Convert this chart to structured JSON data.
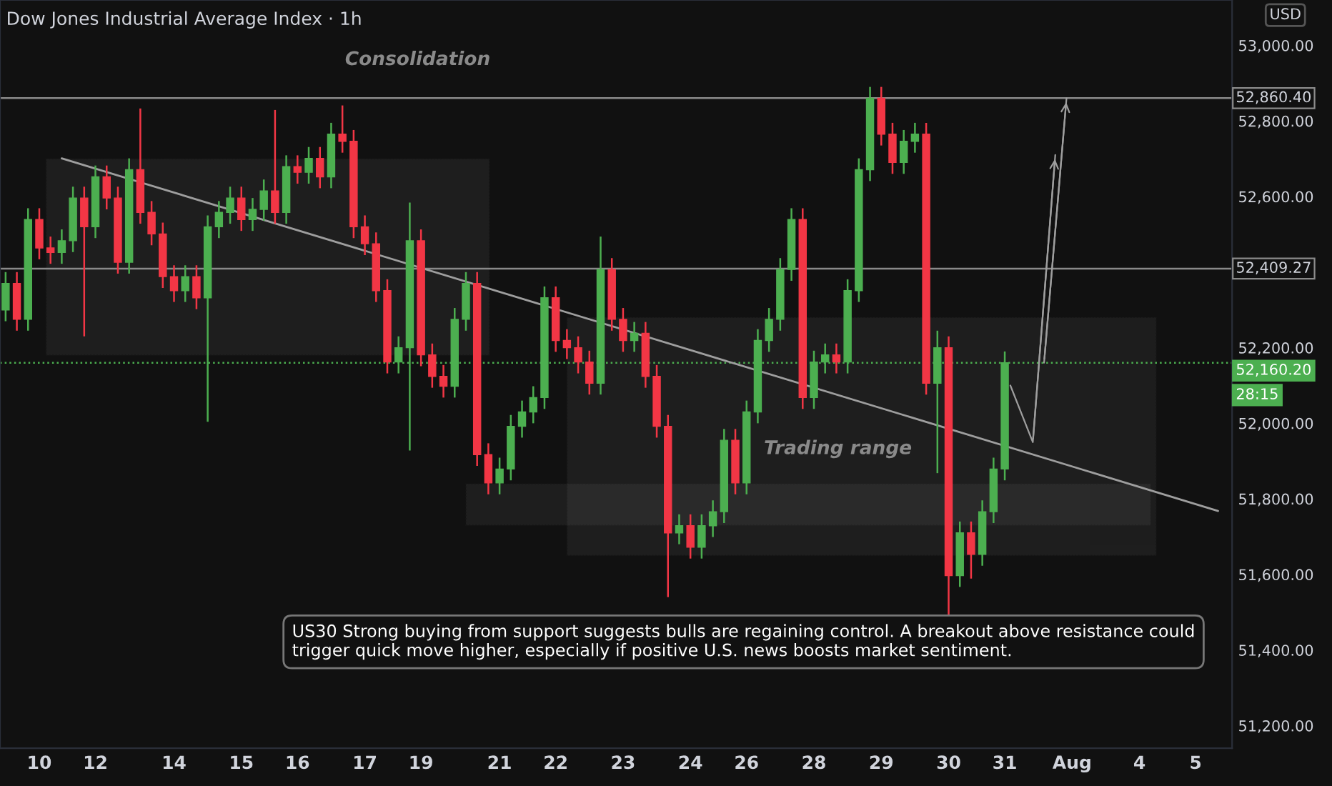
{
  "chart_data": {
    "type": "candlestick",
    "title": "Dow Jones Industrial Average Index · 1h",
    "categories": [
      null,
      null,
      null,
      "10",
      null,
      null,
      null,
      null,
      "12",
      null,
      null,
      null,
      null,
      null,
      null,
      "14",
      null,
      null,
      null,
      null,
      null,
      "15",
      null,
      null,
      null,
      null,
      "16",
      null,
      null,
      null,
      null,
      null,
      "17",
      null,
      null,
      null,
      null,
      "19",
      null,
      null,
      null,
      null,
      null,
      null,
      "21",
      null,
      null,
      null,
      null,
      "22",
      null,
      null,
      null,
      null,
      null,
      "23",
      null,
      null,
      null,
      null,
      null,
      "24",
      null,
      null,
      null,
      null,
      "26",
      null,
      null,
      null,
      null,
      null,
      "28",
      null,
      null,
      null,
      null,
      null,
      "29",
      null,
      null,
      null,
      null,
      null,
      "30",
      null,
      null,
      null,
      null,
      "31",
      null,
      null,
      null,
      null,
      null,
      "Aug",
      null,
      null,
      null,
      null,
      null,
      "4",
      null,
      null,
      null,
      null,
      "5",
      null,
      null,
      null
    ],
    "ohlc": [
      [
        52300,
        52400,
        52270,
        52370
      ],
      [
        52370,
        52400,
        52245,
        52275
      ],
      [
        52275,
        52569,
        52245,
        52539
      ],
      [
        52539,
        52569,
        52434,
        52464
      ],
      [
        52464,
        52494,
        52422,
        52452
      ],
      [
        52452,
        52513,
        52422,
        52483
      ],
      [
        52483,
        52626,
        52453,
        52596
      ],
      [
        52596,
        52626,
        52230,
        52520
      ],
      [
        52520,
        52682,
        52490,
        52652
      ],
      [
        52652,
        52682,
        52566,
        52596
      ],
      [
        52596,
        52626,
        52396,
        52426
      ],
      [
        52426,
        52701,
        52396,
        52671
      ],
      [
        52671,
        52833,
        52528,
        52558
      ],
      [
        52558,
        52588,
        52471,
        52501
      ],
      [
        52501,
        52531,
        52358,
        52388
      ],
      [
        52388,
        52418,
        52321,
        52351
      ],
      [
        52351,
        52418,
        52321,
        52388
      ],
      [
        52388,
        52418,
        52302,
        52332
      ],
      [
        52332,
        52550,
        52004,
        52520
      ],
      [
        52520,
        52588,
        52490,
        52558
      ],
      [
        52558,
        52626,
        52528,
        52596
      ],
      [
        52596,
        52626,
        52509,
        52539
      ],
      [
        52539,
        52596,
        52509,
        52566
      ],
      [
        52566,
        52645,
        52536,
        52615
      ],
      [
        52615,
        52829,
        52528,
        52558
      ],
      [
        52558,
        52709,
        52528,
        52679
      ],
      [
        52679,
        52709,
        52634,
        52664
      ],
      [
        52664,
        52731,
        52634,
        52701
      ],
      [
        52701,
        52731,
        52622,
        52652
      ],
      [
        52652,
        52795,
        52622,
        52765
      ],
      [
        52765,
        52841,
        52716,
        52746
      ],
      [
        52746,
        52776,
        52490,
        52520
      ],
      [
        52520,
        52550,
        52445,
        52475
      ],
      [
        52475,
        52505,
        52321,
        52351
      ],
      [
        52351,
        52381,
        52132,
        52162
      ],
      [
        52162,
        52230,
        52132,
        52200
      ],
      [
        52200,
        52584,
        51928,
        52483
      ],
      [
        52483,
        52513,
        52151,
        52181
      ],
      [
        52181,
        52211,
        52094,
        52124
      ],
      [
        52124,
        52154,
        52068,
        52098
      ],
      [
        52098,
        52305,
        52068,
        52275
      ],
      [
        52275,
        52400,
        52245,
        52370
      ],
      [
        52370,
        52400,
        51887,
        51917
      ],
      [
        51917,
        51947,
        51812,
        51842
      ],
      [
        51842,
        51909,
        51812,
        51879
      ],
      [
        51879,
        52022,
        51849,
        51992
      ],
      [
        51992,
        52060,
        51962,
        52030
      ],
      [
        52030,
        52098,
        52000,
        52068
      ],
      [
        52068,
        52362,
        52038,
        52332
      ],
      [
        52332,
        52362,
        52189,
        52219
      ],
      [
        52219,
        52249,
        52170,
        52200
      ],
      [
        52200,
        52230,
        52132,
        52162
      ],
      [
        52162,
        52192,
        52076,
        52106
      ],
      [
        52106,
        52494,
        52076,
        52407
      ],
      [
        52407,
        52437,
        52245,
        52275
      ],
      [
        52275,
        52305,
        52189,
        52219
      ],
      [
        52219,
        52268,
        52189,
        52238
      ],
      [
        52238,
        52268,
        52094,
        52124
      ],
      [
        52124,
        52154,
        51962,
        51992
      ],
      [
        51992,
        52022,
        51540,
        51710
      ],
      [
        51710,
        51759,
        51680,
        51729
      ],
      [
        51729,
        51759,
        51642,
        51672
      ],
      [
        51672,
        51759,
        51642,
        51729
      ],
      [
        51729,
        51796,
        51699,
        51766
      ],
      [
        51766,
        51985,
        51736,
        51955
      ],
      [
        51955,
        51985,
        51812,
        51842
      ],
      [
        51842,
        52060,
        51812,
        52030
      ],
      [
        52030,
        52249,
        52000,
        52219
      ],
      [
        52219,
        52305,
        52189,
        52275
      ],
      [
        52275,
        52437,
        52245,
        52407
      ],
      [
        52407,
        52569,
        52377,
        52539
      ],
      [
        52539,
        52569,
        52038,
        52068
      ],
      [
        52068,
        52192,
        52038,
        52162
      ],
      [
        52162,
        52211,
        52132,
        52181
      ],
      [
        52181,
        52211,
        52132,
        52162
      ],
      [
        52162,
        52381,
        52132,
        52351
      ],
      [
        52351,
        52701,
        52321,
        52671
      ],
      [
        52671,
        52890,
        52641,
        52860
      ],
      [
        52860,
        52890,
        52735,
        52765
      ],
      [
        52765,
        52795,
        52660,
        52690
      ],
      [
        52690,
        52776,
        52660,
        52746
      ],
      [
        52746,
        52795,
        52716,
        52765
      ],
      [
        52765,
        52795,
        52076,
        52106
      ],
      [
        52106,
        52245,
        51868,
        52200
      ],
      [
        52200,
        52230,
        51491,
        51597
      ],
      [
        51597,
        51740,
        51567,
        51710
      ],
      [
        51710,
        51740,
        51589,
        51653
      ],
      [
        51653,
        51796,
        51623,
        51766
      ],
      [
        51766,
        51909,
        51736,
        51879
      ],
      [
        51879,
        52190,
        51849,
        52160
      ],
      null,
      null,
      null,
      null,
      null,
      null,
      null,
      null,
      null,
      null,
      null,
      null,
      null,
      null,
      null,
      null,
      null,
      null,
      null,
      null
    ],
    "series": [
      {
        "type": "line",
        "color": "#9e9e9e",
        "values": [
          null,
          null,
          null,
          null,
          null,
          52701,
          null,
          null,
          null,
          null,
          null,
          null,
          null,
          null,
          null,
          null,
          null,
          null,
          null,
          null,
          null,
          null,
          null,
          null,
          null,
          null,
          null,
          null,
          null,
          null,
          null,
          null,
          null,
          null,
          null,
          null,
          null,
          null,
          null,
          null,
          null,
          null,
          null,
          null,
          null,
          null,
          null,
          null,
          null,
          null,
          null,
          null,
          null,
          null,
          null,
          null,
          null,
          null,
          null,
          null,
          null,
          null,
          null,
          null,
          null,
          null,
          null,
          null,
          null,
          null,
          null,
          null,
          null,
          null,
          null,
          null,
          null,
          null,
          null,
          null,
          null,
          null,
          null,
          null,
          null,
          null,
          null,
          null,
          null,
          null,
          null,
          null,
          null,
          null,
          null,
          null,
          null,
          null,
          null,
          null,
          null,
          null,
          null,
          null,
          null,
          null,
          null,
          null,
          51768,
          null
        ]
      }
    ],
    "ylim": [
      51140,
      53120
    ],
    "yticks": [
      {
        "value": 51200,
        "label": "51,200.00"
      },
      {
        "value": 51400,
        "label": "51,400.00"
      },
      {
        "value": 51600,
        "label": "51,600.00"
      },
      {
        "value": 51800,
        "label": "51,800.00"
      },
      {
        "value": 52000,
        "label": "52,000.00"
      },
      {
        "value": 52200,
        "label": "52,200.00"
      },
      {
        "value": 52600,
        "label": "52,600.00"
      },
      {
        "value": 52800,
        "label": "52,800.00"
      },
      {
        "value": 53000,
        "label": "53,000.00"
      }
    ],
    "ref_lines": [
      {
        "axis": "y",
        "value": 52860.4,
        "label": "52,860.40",
        "color": "#8a8a8a",
        "line_style": "solid"
      },
      {
        "axis": "y",
        "value": 52409.27,
        "label": "52,409.27",
        "color": "#8a8a8a",
        "line_style": "solid"
      },
      {
        "axis": "y",
        "value": 52160.2,
        "label": "52,160.20",
        "color": "#4caf50",
        "line_style": "dotted"
      }
    ],
    "annotations": [
      "Consolidation",
      "Trading range",
      "US30 Strong buying from support suggests bulls are regaining control. A breakout above resistance could trigger quick move higher, especially if positive U.S. news boosts market sentiment.",
      "USD",
      "28:15"
    ],
    "grid": false,
    "legend": false
  }
}
